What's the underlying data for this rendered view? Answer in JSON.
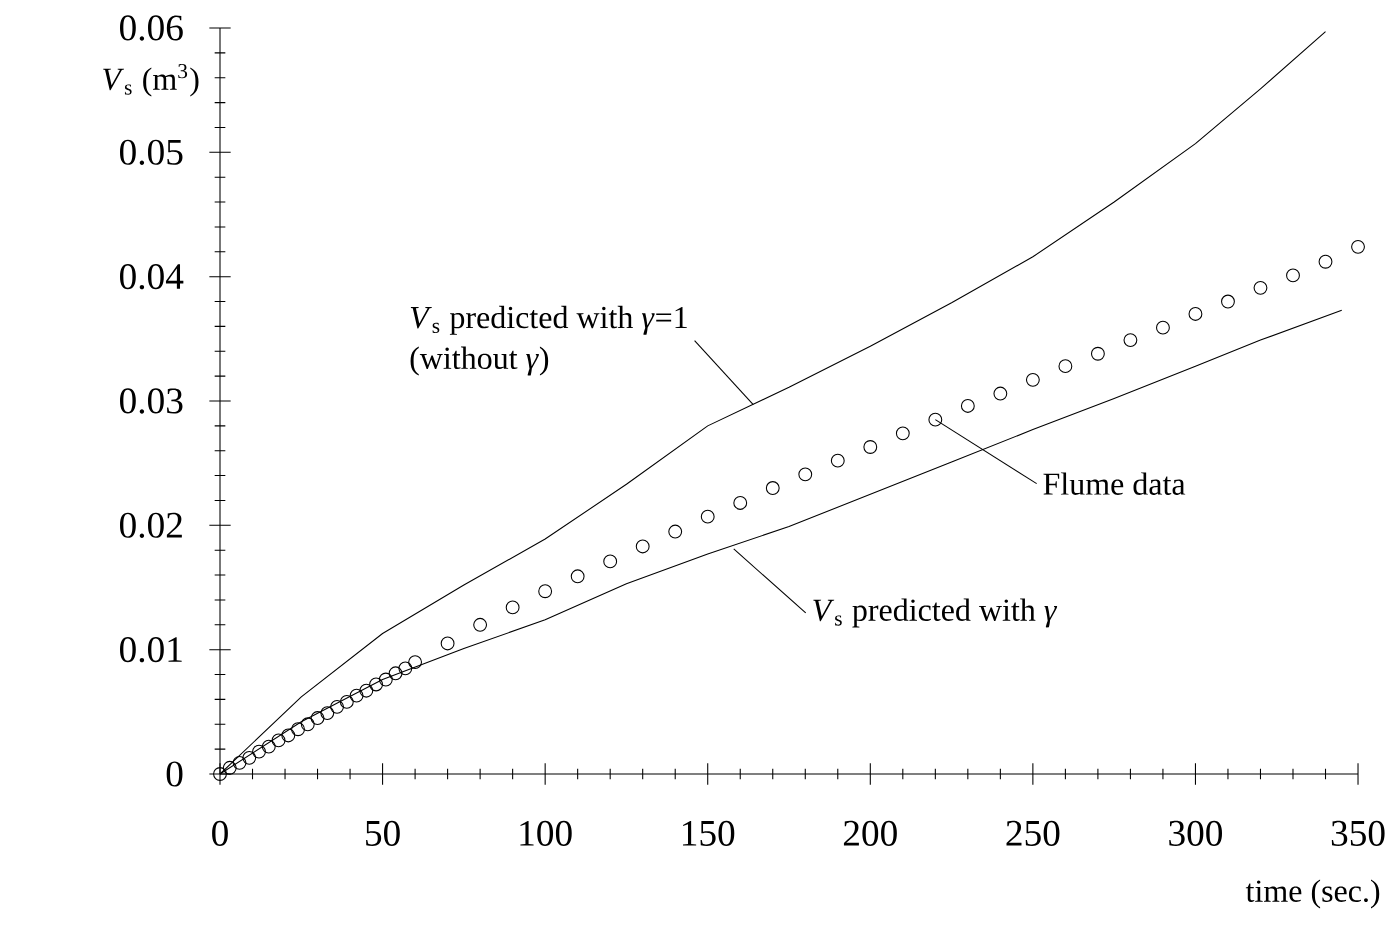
{
  "chart_data": {
    "type": "line",
    "xlabel": "time (sec.)",
    "ylabel": "*V*$_{s}$ (m$^{3}$)",
    "xlim": [
      0,
      350
    ],
    "ylim": [
      0,
      0.06
    ],
    "xticks": [
      0,
      50,
      100,
      150,
      200,
      250,
      300,
      350
    ],
    "yticks": [
      0,
      0.01,
      0.02,
      0.03,
      0.04,
      0.05,
      0.06
    ],
    "grid": false,
    "series": [
      {
        "color": "#000000",
        "marker": "none",
        "line_style": "solid",
        "x": [
          0,
          25,
          50,
          75,
          100,
          125,
          150,
          175,
          200,
          225,
          250,
          275,
          300,
          320,
          340
        ],
        "values": [
          0,
          0.0062,
          0.0113,
          0.0152,
          0.0189,
          0.0233,
          0.028,
          0.0311,
          0.0344,
          0.0379,
          0.0416,
          0.046,
          0.0507,
          0.0551,
          0.0597
        ]
      },
      {
        "color": "#000000",
        "marker": "none",
        "line_style": "solid",
        "x": [
          0,
          25,
          50,
          75,
          100,
          125,
          150,
          175,
          200,
          225,
          250,
          275,
          300,
          320,
          345
        ],
        "values": [
          0,
          0.0042,
          0.0076,
          0.0101,
          0.0124,
          0.0153,
          0.0177,
          0.0199,
          0.0225,
          0.0251,
          0.0277,
          0.0302,
          0.0328,
          0.0349,
          0.0373
        ]
      },
      {
        "type": "scatter",
        "color": "#000000",
        "marker": "circle",
        "x": [
          0,
          3,
          6,
          9,
          12,
          15,
          18,
          21,
          24,
          27,
          30,
          33,
          36,
          39,
          42,
          45,
          48,
          51,
          54,
          57,
          60,
          70,
          80,
          90,
          100,
          110,
          120,
          130,
          140,
          150,
          160,
          170,
          180,
          190,
          200,
          210,
          220,
          230,
          240,
          250,
          260,
          270,
          280,
          290,
          300,
          310,
          320,
          330,
          340,
          350
        ],
        "values": [
          0,
          0.0005,
          0.0009,
          0.0013,
          0.0018,
          0.0022,
          0.0027,
          0.0031,
          0.0036,
          0.004,
          0.0045,
          0.0049,
          0.0054,
          0.0058,
          0.0063,
          0.0067,
          0.0072,
          0.0076,
          0.0081,
          0.0085,
          0.009,
          0.0105,
          0.012,
          0.0134,
          0.0147,
          0.0159,
          0.0171,
          0.0183,
          0.0195,
          0.0207,
          0.0218,
          0.023,
          0.0241,
          0.0252,
          0.0263,
          0.0274,
          0.0285,
          0.0296,
          0.0306,
          0.0317,
          0.0328,
          0.0338,
          0.0349,
          0.0359,
          0.037,
          0.038,
          0.0391,
          0.0401,
          0.0412,
          0.0424
        ]
      }
    ],
    "annotations": [
      {
        "text": "*V*$_{s}$ predicted with *γ*=1",
        "x": 164,
        "y": 0.0297
      },
      "(without *γ*)",
      {
        "text": "Flume data",
        "x": 220,
        "y": 0.0285
      },
      {
        "text": "*V*$_{s}$ predicted with *γ*",
        "x": 158,
        "y": 0.0181
      }
    ]
  }
}
